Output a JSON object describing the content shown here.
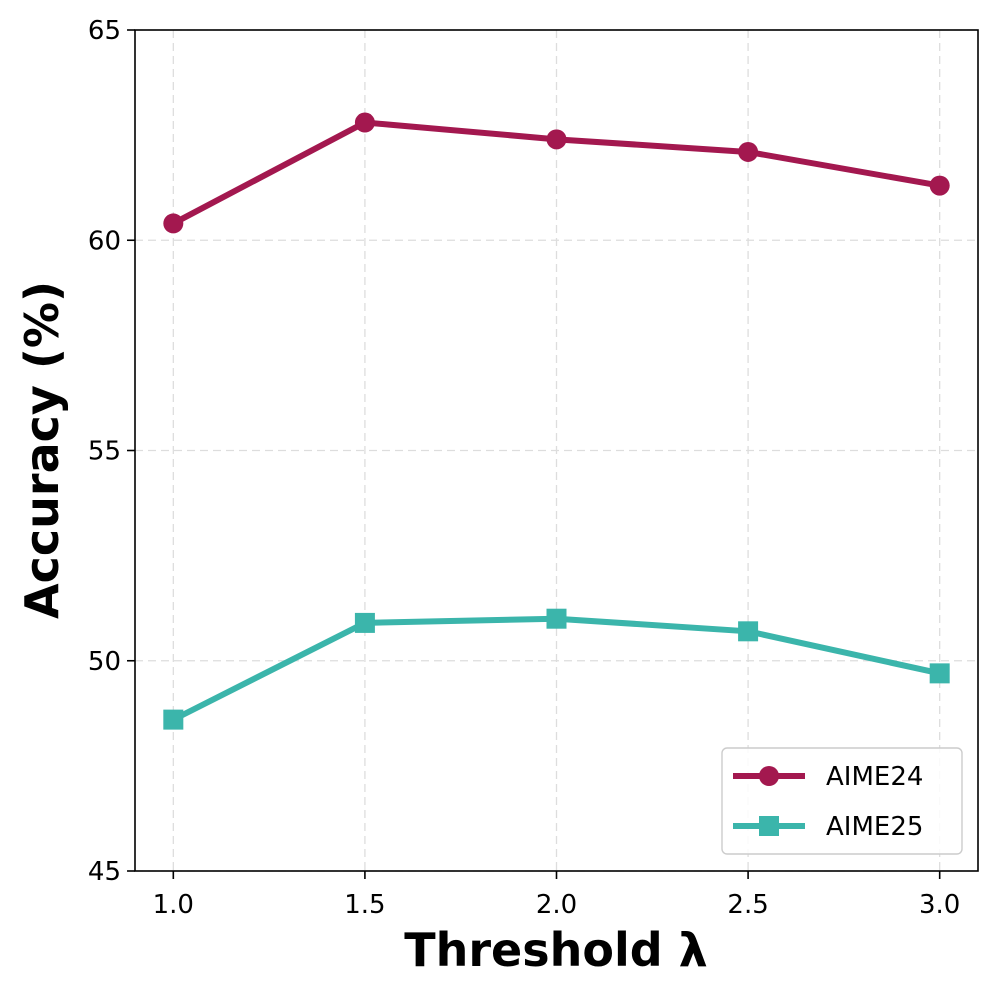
{
  "chart_data": {
    "type": "line",
    "xlabel": "Threshold λ",
    "ylabel": "Accuracy (%)",
    "x": [
      1.0,
      1.5,
      2.0,
      2.5,
      3.0
    ],
    "x_ticks": [
      "1.0",
      "1.5",
      "2.0",
      "2.5",
      "3.0"
    ],
    "y_ticks": [
      "45",
      "50",
      "55",
      "60",
      "65"
    ],
    "xlim": [
      0.9,
      3.1
    ],
    "ylim": [
      45,
      65
    ],
    "grid": true,
    "legend_position": "bottom-right",
    "series": [
      {
        "name": "AIME24",
        "values": [
          60.4,
          62.8,
          62.4,
          62.1,
          61.3
        ],
        "color": "#a3184f",
        "marker": "circle"
      },
      {
        "name": "AIME25",
        "values": [
          48.6,
          50.9,
          51.0,
          50.7,
          49.7
        ],
        "color": "#3bb5ab",
        "marker": "square"
      }
    ]
  }
}
